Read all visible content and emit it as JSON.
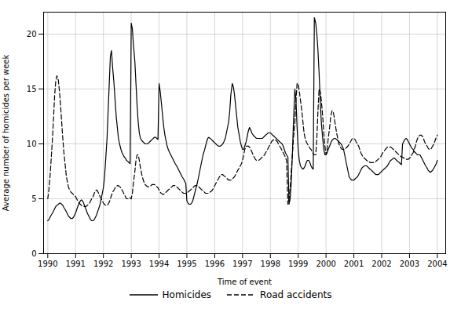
{
  "chart_data": {
    "type": "line",
    "xlabel": "Time of event",
    "ylabel": "Average number of homicides per week",
    "xlim": [
      1989.85,
      2004.3
    ],
    "xticks": [
      1990,
      1991,
      1992,
      1993,
      1994,
      1995,
      1996,
      1997,
      1998,
      1999,
      2000,
      2001,
      2002,
      2003,
      2004
    ],
    "ylim": [
      0,
      22
    ],
    "yticks": [
      0,
      5,
      10,
      15,
      20
    ],
    "grid": true,
    "legend": "bottom",
    "x": [
      1990.0,
      1990.04,
      1990.08,
      1990.12,
      1990.17,
      1990.21,
      1990.25,
      1990.29,
      1990.33,
      1990.38,
      1990.42,
      1990.46,
      1990.5,
      1990.54,
      1990.58,
      1990.63,
      1990.67,
      1990.71,
      1990.75,
      1990.79,
      1990.83,
      1990.88,
      1990.92,
      1990.96,
      1991.0,
      1991.04,
      1991.08,
      1991.13,
      1991.17,
      1991.21,
      1991.25,
      1991.29,
      1991.33,
      1991.38,
      1991.42,
      1991.46,
      1991.5,
      1991.54,
      1991.58,
      1991.63,
      1991.67,
      1991.71,
      1991.75,
      1991.79,
      1991.83,
      1991.88,
      1991.92,
      1991.96,
      1992.0,
      1992.04,
      1992.08,
      1992.13,
      1992.17,
      1992.21,
      1992.25,
      1992.29,
      1992.33,
      1992.38,
      1992.42,
      1992.46,
      1992.5,
      1992.54,
      1992.58,
      1992.63,
      1992.67,
      1992.71,
      1992.75,
      1992.79,
      1992.83,
      1992.88,
      1992.92,
      1992.96,
      1993.0,
      1993.04,
      1993.08,
      1993.13,
      1993.17,
      1993.21,
      1993.25,
      1993.29,
      1993.33,
      1993.38,
      1993.42,
      1993.46,
      1993.5,
      1993.54,
      1993.58,
      1993.63,
      1993.67,
      1993.71,
      1993.75,
      1993.79,
      1993.83,
      1993.88,
      1993.92,
      1993.96,
      1994.0,
      1994.04,
      1994.08,
      1994.13,
      1994.17,
      1994.21,
      1994.25,
      1994.29,
      1994.33,
      1994.38,
      1994.42,
      1994.46,
      1994.5,
      1994.54,
      1994.58,
      1994.63,
      1994.67,
      1994.71,
      1994.75,
      1994.79,
      1994.83,
      1994.88,
      1994.92,
      1994.96,
      1995.0,
      1995.04,
      1995.08,
      1995.13,
      1995.17,
      1995.21,
      1995.25,
      1995.29,
      1995.33,
      1995.38,
      1995.42,
      1995.46,
      1995.5,
      1995.54,
      1995.58,
      1995.63,
      1995.67,
      1995.71,
      1995.75,
      1995.79,
      1995.83,
      1995.88,
      1995.92,
      1995.96,
      1996.0,
      1996.04,
      1996.08,
      1996.13,
      1996.17,
      1996.21,
      1996.25,
      1996.29,
      1996.33,
      1996.38,
      1996.42,
      1996.46,
      1996.5,
      1996.54,
      1996.58,
      1996.63,
      1996.67,
      1996.71,
      1996.75,
      1996.79,
      1996.83,
      1996.88,
      1996.92,
      1996.96,
      1997.0,
      1997.04,
      1997.08,
      1997.13,
      1997.17,
      1997.21,
      1997.25,
      1997.29,
      1997.33,
      1997.38,
      1997.42,
      1997.46,
      1997.5,
      1997.54,
      1997.58,
      1997.63,
      1997.67,
      1997.71,
      1997.75,
      1997.79,
      1997.83,
      1997.88,
      1997.92,
      1997.96,
      1998.0,
      1998.04,
      1998.08,
      1998.13,
      1998.17,
      1998.21,
      1998.25,
      1998.29,
      1998.33,
      1998.38,
      1998.42,
      1998.46,
      1998.5,
      1998.54,
      1998.58,
      1998.63,
      1998.67,
      1998.71,
      1998.75,
      1998.79,
      1998.83,
      1998.88,
      1998.92,
      1998.96,
      1999.0,
      1999.04,
      1999.08,
      1999.13,
      1999.17,
      1999.21,
      1999.25,
      1999.29,
      1999.33,
      1999.38,
      1999.42,
      1999.46,
      1999.5,
      1999.54,
      1999.58,
      1999.63,
      1999.67,
      1999.71,
      1999.75,
      1999.79,
      1999.83,
      1999.88,
      1999.92,
      1999.96,
      2000.0,
      2000.04,
      2000.08,
      2000.13,
      2000.17,
      2000.21,
      2000.25,
      2000.29,
      2000.33,
      2000.38,
      2000.42,
      2000.46,
      2000.5,
      2000.54,
      2000.58,
      2000.63,
      2000.67,
      2000.71,
      2000.75,
      2000.79,
      2000.83,
      2000.88,
      2000.92,
      2000.96,
      2001.0,
      2001.04,
      2001.08,
      2001.13,
      2001.17,
      2001.21,
      2001.25,
      2001.29,
      2001.33,
      2001.38,
      2001.42,
      2001.46,
      2001.5,
      2001.54,
      2001.58,
      2001.63,
      2001.67,
      2001.71,
      2001.75,
      2001.79,
      2001.83,
      2001.88,
      2001.92,
      2001.96,
      2002.0,
      2002.04,
      2002.08,
      2002.13,
      2002.17,
      2002.21,
      2002.25,
      2002.29,
      2002.33,
      2002.38,
      2002.42,
      2002.46,
      2002.5,
      2002.54,
      2002.58,
      2002.63,
      2002.67,
      2002.71,
      2002.75,
      2002.79,
      2002.83,
      2002.88,
      2002.92,
      2002.96,
      2003.0,
      2003.04,
      2003.08,
      2003.13,
      2003.17,
      2003.21,
      2003.25,
      2003.29,
      2003.33,
      2003.38,
      2003.42,
      2003.46,
      2003.5,
      2003.54,
      2003.58,
      2003.63,
      2003.67,
      2003.71,
      2003.75,
      2003.79,
      2003.83,
      2003.88,
      2003.92,
      2003.96,
      2004.0
    ],
    "series": [
      {
        "name": "Homicides",
        "color": "#000000",
        "line_style": "solid",
        "values": [
          3.0,
          3.1,
          3.3,
          3.5,
          3.7,
          3.9,
          4.1,
          4.3,
          4.4,
          4.5,
          4.6,
          4.6,
          4.5,
          4.4,
          4.2,
          4.0,
          3.8,
          3.6,
          3.4,
          3.3,
          3.2,
          3.2,
          3.3,
          3.5,
          3.7,
          4.0,
          4.3,
          4.6,
          4.8,
          4.9,
          4.8,
          4.6,
          4.3,
          4.0,
          3.7,
          3.5,
          3.3,
          3.1,
          3.0,
          3.0,
          3.1,
          3.3,
          3.5,
          3.8,
          4.1,
          4.5,
          5.0,
          5.5,
          6.0,
          7.0,
          8.5,
          10.5,
          13.0,
          15.5,
          18.0,
          18.5,
          17.0,
          15.5,
          14.0,
          12.5,
          11.5,
          10.5,
          10.0,
          9.5,
          9.2,
          9.0,
          8.8,
          8.7,
          8.5,
          8.4,
          8.3,
          8.2,
          21.0,
          20.5,
          19.0,
          17.5,
          15.5,
          13.5,
          12.0,
          11.0,
          10.5,
          10.3,
          10.2,
          10.1,
          10.0,
          10.0,
          10.0,
          10.1,
          10.2,
          10.3,
          10.4,
          10.5,
          10.6,
          10.6,
          10.5,
          10.4,
          15.5,
          14.8,
          13.8,
          12.5,
          11.5,
          10.8,
          10.3,
          9.8,
          9.5,
          9.2,
          9.0,
          8.8,
          8.6,
          8.4,
          8.2,
          8.0,
          7.8,
          7.6,
          7.4,
          7.2,
          7.0,
          6.8,
          6.6,
          6.4,
          4.8,
          4.6,
          4.5,
          4.5,
          4.6,
          4.8,
          5.2,
          5.6,
          6.0,
          6.5,
          7.0,
          7.5,
          8.0,
          8.5,
          9.0,
          9.4,
          9.8,
          10.2,
          10.5,
          10.6,
          10.5,
          10.4,
          10.3,
          10.2,
          10.1,
          10.0,
          9.9,
          9.8,
          9.8,
          9.8,
          9.9,
          10.0,
          10.2,
          10.5,
          11.0,
          11.5,
          12.0,
          13.0,
          14.5,
          15.5,
          15.2,
          14.5,
          13.5,
          12.5,
          11.5,
          10.8,
          10.2,
          9.8,
          9.5,
          9.5,
          9.8,
          10.2,
          10.7,
          11.2,
          11.5,
          11.3,
          11.0,
          10.8,
          10.7,
          10.6,
          10.5,
          10.5,
          10.5,
          10.5,
          10.5,
          10.5,
          10.6,
          10.7,
          10.8,
          10.9,
          11.0,
          11.0,
          11.0,
          10.9,
          10.8,
          10.7,
          10.6,
          10.5,
          10.4,
          10.3,
          10.2,
          10.1,
          10.0,
          9.8,
          9.5,
          9.2,
          9.0,
          8.8,
          4.5,
          5.0,
          6.5,
          9.0,
          12.0,
          15.0,
          14.0,
          11.5,
          9.5,
          8.5,
          8.0,
          7.8,
          7.7,
          7.8,
          8.0,
          8.3,
          8.5,
          8.5,
          8.3,
          8.0,
          7.8,
          7.7,
          21.5,
          21.0,
          20.0,
          18.5,
          16.5,
          14.0,
          12.0,
          10.5,
          9.5,
          9.0,
          9.0,
          9.2,
          9.5,
          9.8,
          10.1,
          10.3,
          10.4,
          10.5,
          10.5,
          10.4,
          10.3,
          10.2,
          10.1,
          10.0,
          9.8,
          9.5,
          9.0,
          8.5,
          8.0,
          7.5,
          7.0,
          6.8,
          6.7,
          6.7,
          6.7,
          6.8,
          6.9,
          7.0,
          7.2,
          7.4,
          7.6,
          7.8,
          7.9,
          8.0,
          8.0,
          8.0,
          7.9,
          7.8,
          7.7,
          7.6,
          7.5,
          7.4,
          7.3,
          7.2,
          7.2,
          7.2,
          7.3,
          7.4,
          7.5,
          7.6,
          7.7,
          7.8,
          7.9,
          8.0,
          8.2,
          8.4,
          8.5,
          8.6,
          8.7,
          8.7,
          8.6,
          8.5,
          8.4,
          8.3,
          8.2,
          8.1,
          10.0,
          10.2,
          10.4,
          10.5,
          10.4,
          10.2,
          10.0,
          9.8,
          9.6,
          9.5,
          9.3,
          9.2,
          9.1,
          9.0,
          9.0,
          9.0,
          8.8,
          8.6,
          8.4,
          8.2,
          8.0,
          7.8,
          7.6,
          7.5,
          7.4,
          7.5,
          7.6,
          7.8,
          8.0,
          8.2,
          8.5
        ]
      },
      {
        "name": "Road accidents",
        "color": "#000000",
        "line_style": "dashed",
        "values": [
          5.0,
          5.8,
          7.0,
          8.5,
          10.5,
          12.5,
          14.5,
          15.8,
          16.2,
          15.8,
          14.8,
          13.5,
          12.0,
          10.5,
          9.2,
          8.0,
          7.0,
          6.5,
          6.0,
          5.8,
          5.6,
          5.5,
          5.4,
          5.3,
          5.2,
          5.0,
          4.8,
          4.6,
          4.5,
          4.4,
          4.3,
          4.3,
          4.3,
          4.3,
          4.4,
          4.5,
          4.6,
          4.8,
          5.0,
          5.2,
          5.5,
          5.7,
          5.8,
          5.7,
          5.5,
          5.2,
          5.0,
          4.8,
          4.6,
          4.5,
          4.4,
          4.4,
          4.5,
          4.7,
          5.0,
          5.3,
          5.6,
          5.8,
          6.0,
          6.1,
          6.2,
          6.2,
          6.1,
          6.0,
          5.8,
          5.6,
          5.4,
          5.2,
          5.0,
          5.0,
          5.0,
          5.1,
          5.0,
          5.5,
          6.5,
          7.5,
          8.5,
          9.0,
          9.0,
          8.5,
          7.8,
          7.2,
          6.8,
          6.5,
          6.3,
          6.2,
          6.1,
          6.1,
          6.1,
          6.2,
          6.3,
          6.3,
          6.3,
          6.2,
          6.1,
          6.0,
          5.8,
          5.6,
          5.5,
          5.4,
          5.4,
          5.5,
          5.6,
          5.7,
          5.8,
          5.9,
          6.0,
          6.1,
          6.2,
          6.2,
          6.2,
          6.1,
          6.0,
          5.9,
          5.8,
          5.7,
          5.6,
          5.5,
          5.5,
          5.5,
          5.5,
          5.6,
          5.7,
          5.8,
          5.9,
          6.0,
          6.1,
          6.2,
          6.2,
          6.2,
          6.1,
          6.0,
          5.9,
          5.8,
          5.7,
          5.6,
          5.5,
          5.5,
          5.5,
          5.5,
          5.6,
          5.7,
          5.8,
          6.0,
          6.2,
          6.4,
          6.6,
          6.8,
          7.0,
          7.1,
          7.2,
          7.2,
          7.1,
          7.0,
          6.9,
          6.8,
          6.7,
          6.7,
          6.7,
          6.8,
          6.9,
          7.0,
          7.2,
          7.4,
          7.6,
          7.8,
          8.0,
          8.2,
          8.5,
          9.0,
          9.5,
          9.8,
          9.8,
          9.8,
          9.7,
          9.5,
          9.3,
          9.0,
          8.8,
          8.6,
          8.5,
          8.5,
          8.5,
          8.6,
          8.7,
          8.8,
          8.9,
          9.0,
          9.2,
          9.4,
          9.6,
          9.8,
          10.0,
          10.2,
          10.3,
          10.4,
          10.4,
          10.3,
          10.2,
          10.0,
          9.8,
          9.6,
          9.4,
          9.2,
          9.0,
          8.8,
          8.5,
          4.5,
          5.0,
          6.0,
          7.5,
          9.0,
          10.5,
          12.0,
          14.0,
          15.5,
          15.5,
          14.8,
          14.0,
          13.0,
          12.0,
          11.0,
          10.5,
          10.2,
          10.0,
          9.8,
          9.6,
          9.5,
          9.3,
          9.1,
          9.0,
          9.0,
          10.5,
          13.0,
          15.0,
          14.8,
          14.0,
          12.5,
          11.0,
          9.8,
          9.0,
          9.5,
          10.5,
          11.5,
          12.5,
          13.0,
          13.0,
          12.5,
          11.8,
          11.0,
          10.5,
          10.0,
          9.8,
          9.6,
          9.5,
          9.5,
          9.5,
          9.6,
          9.7,
          9.8,
          10.0,
          10.2,
          10.4,
          10.5,
          10.5,
          10.4,
          10.2,
          10.0,
          9.8,
          9.5,
          9.2,
          9.0,
          8.8,
          8.7,
          8.6,
          8.5,
          8.4,
          8.4,
          8.3,
          8.3,
          8.3,
          8.3,
          8.3,
          8.4,
          8.5,
          8.6,
          8.7,
          8.8,
          9.0,
          9.2,
          9.3,
          9.5,
          9.6,
          9.7,
          9.7,
          9.7,
          9.7,
          9.6,
          9.5,
          9.4,
          9.3,
          9.2,
          9.1,
          9.0,
          8.9,
          8.8,
          8.8,
          8.7,
          8.7,
          8.6,
          8.6,
          8.6,
          8.7,
          8.8,
          9.0,
          9.2,
          9.5,
          9.8,
          10.2,
          10.5,
          10.7,
          10.8,
          10.8,
          10.7,
          10.5,
          10.2,
          10.0,
          9.8,
          9.6,
          9.5,
          9.5,
          9.6,
          9.8,
          10.0,
          10.3,
          10.6,
          10.8
        ]
      }
    ]
  }
}
